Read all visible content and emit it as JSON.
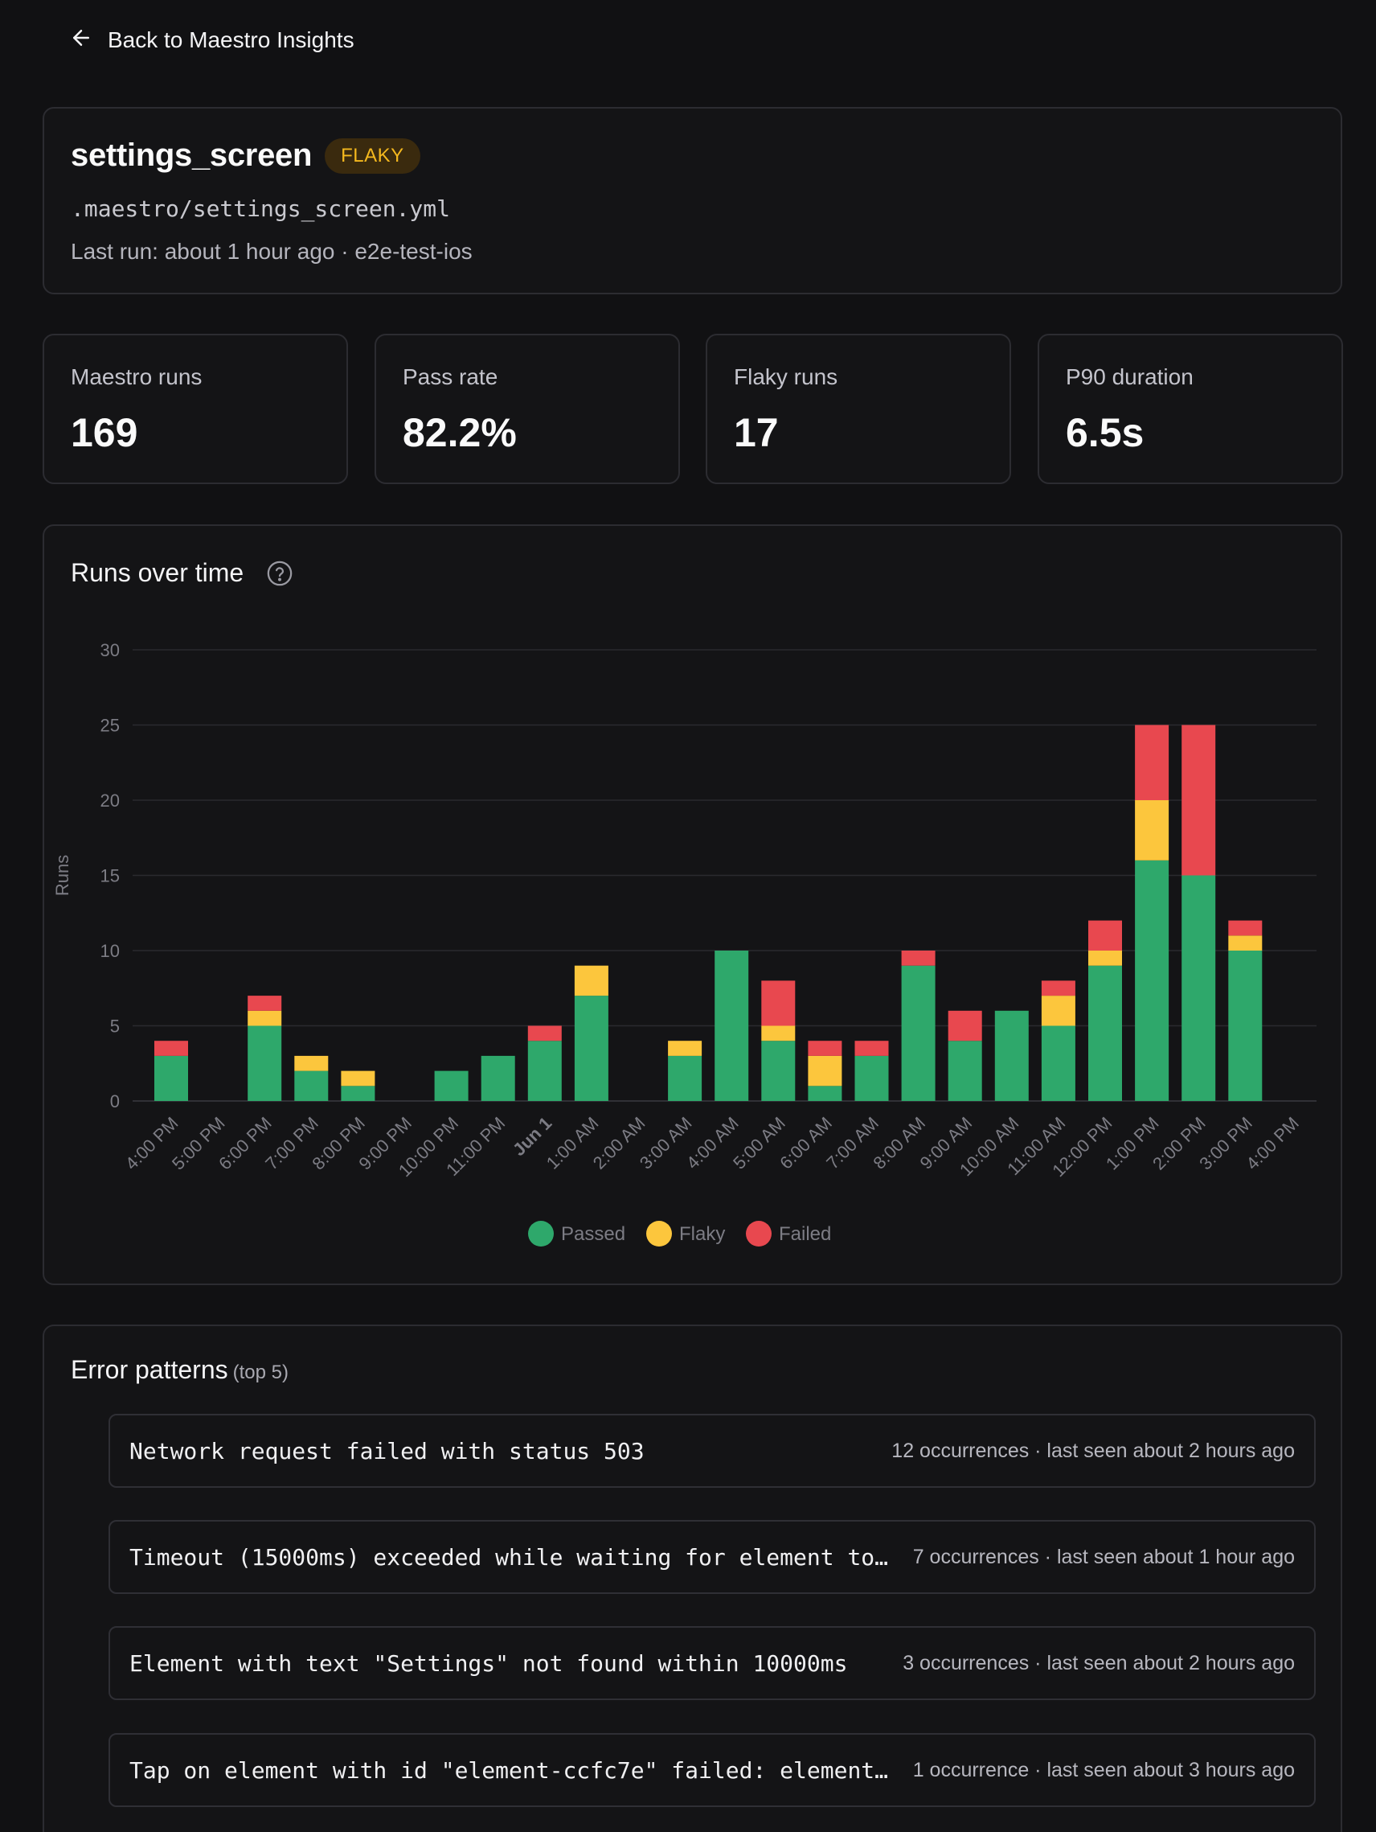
{
  "back": {
    "label": "Back to Maestro Insights",
    "icon": "arrow-left-icon"
  },
  "test": {
    "name": "settings_screen",
    "badge": "FLAKY",
    "path": ".maestro/settings_screen.yml",
    "last_run": "Last run: about 1 hour ago · e2e-test-ios"
  },
  "stats": [
    {
      "label": "Maestro runs",
      "value": "169"
    },
    {
      "label": "Pass rate",
      "value": "82.2%"
    },
    {
      "label": "Flaky runs",
      "value": "17"
    },
    {
      "label": "P90 duration",
      "value": "6.5s"
    }
  ],
  "chart": {
    "title": "Runs over time",
    "help_icon": "question-circle-icon"
  },
  "colors": {
    "passed": "#2ea86b",
    "flaky": "#fcc63d",
    "failed": "#e8484f",
    "grid": "#2a2a2f",
    "axis_text": "#7c7c84"
  },
  "chart_data": {
    "type": "bar",
    "stacked": true,
    "ylabel": "Runs",
    "ylim": [
      0,
      30
    ],
    "yticks": [
      0,
      5,
      10,
      15,
      20,
      25,
      30
    ],
    "grid": true,
    "legend_position": "bottom-center",
    "categories": [
      "4:00 PM",
      "5:00 PM",
      "6:00 PM",
      "7:00 PM",
      "8:00 PM",
      "9:00 PM",
      "10:00 PM",
      "11:00 PM",
      "Jun 1",
      "1:00 AM",
      "2:00 AM",
      "3:00 AM",
      "4:00 AM",
      "5:00 AM",
      "6:00 AM",
      "7:00 AM",
      "8:00 AM",
      "9:00 AM",
      "10:00 AM",
      "11:00 AM",
      "12:00 PM",
      "1:00 PM",
      "2:00 PM",
      "3:00 PM",
      "4:00 PM"
    ],
    "series": [
      {
        "name": "Passed",
        "values": [
          3,
          0,
          5,
          2,
          1,
          0,
          2,
          3,
          4,
          7,
          0,
          3,
          10,
          4,
          1,
          3,
          9,
          4,
          6,
          5,
          9,
          16,
          15,
          10,
          0
        ]
      },
      {
        "name": "Flaky",
        "values": [
          0,
          0,
          1,
          1,
          1,
          0,
          0,
          0,
          0,
          2,
          0,
          1,
          0,
          1,
          2,
          0,
          0,
          0,
          0,
          2,
          1,
          4,
          0,
          1,
          0
        ]
      },
      {
        "name": "Failed",
        "values": [
          1,
          0,
          1,
          0,
          0,
          0,
          0,
          0,
          1,
          0,
          0,
          0,
          0,
          3,
          1,
          1,
          1,
          2,
          0,
          1,
          2,
          5,
          10,
          1,
          0
        ]
      }
    ]
  },
  "errors": {
    "title": "Error patterns",
    "subtitle": "(top 5)",
    "items": [
      {
        "message": "Network request failed with status 503",
        "meta": "12 occurrences · last seen about 2 hours ago"
      },
      {
        "message": "Timeout (15000ms) exceeded while waiting for element to…",
        "meta": "7 occurrences · last seen about 1 hour ago"
      },
      {
        "message": "Element with text \"Settings\" not found within 10000ms",
        "meta": "3 occurrences · last seen about 2 hours ago"
      },
      {
        "message": "Tap on element with id \"element-ccfc7e\" failed: element…",
        "meta": "1 occurrence · last seen about 3 hours ago"
      }
    ]
  }
}
